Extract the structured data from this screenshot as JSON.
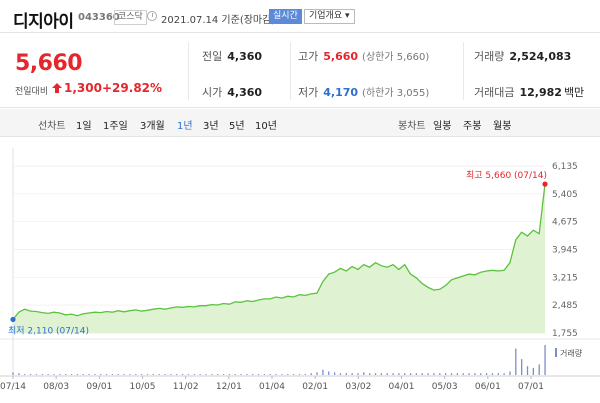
{
  "header": {
    "stock_name": "디지아이",
    "stock_code": "043360",
    "market": "코스닥",
    "date_text": "2021.07.14 기준(장마감)",
    "realtime_label": "실시간",
    "company_info_label": "기업개요 ▾"
  },
  "summary": {
    "price": "5,660",
    "change_label": "전일대비",
    "change_abs": "1,300",
    "change_pct": "+29.82%",
    "prev_close": {
      "label": "전일",
      "value": "4,360"
    },
    "open": {
      "label": "시가",
      "value": "4,360"
    },
    "high": {
      "label": "고가",
      "value": "5,660",
      "sub": "(상한가 5,660)"
    },
    "low": {
      "label": "저가",
      "value": "4,170",
      "sub": "(하한가 3,055)"
    },
    "volume": {
      "label": "거래량",
      "value": "2,524,083"
    },
    "turnover": {
      "label": "거래대금",
      "value": "12,982",
      "unit": "백만"
    },
    "colors": {
      "up": "#e5262c",
      "down": "#2e6fd2"
    }
  },
  "periods": {
    "line_label": "선차트",
    "line_items": [
      "1일",
      "1주일",
      "3개월",
      "1년",
      "3년",
      "5년",
      "10년"
    ],
    "selected": "1년",
    "candle_label": "봉차트",
    "candle_items": [
      "일봉",
      "주봉",
      "월봉"
    ]
  },
  "chart_data": {
    "type": "area",
    "x_ticks": [
      "07/14",
      "08/03",
      "09/01",
      "10/05",
      "11/02",
      "12/01",
      "01/04",
      "02/01",
      "03/02",
      "04/01",
      "05/03",
      "06/01",
      "07/01"
    ],
    "y_ticks": [
      "6,135",
      "5,405",
      "4,675",
      "3,945",
      "3,215",
      "2,485",
      "1,755"
    ],
    "ylim": [
      1755,
      6135
    ],
    "high_annotation": "최고 5,660 (07/14)",
    "low_annotation": "최저 2,110 (07/14)",
    "volume_label": "거래량",
    "line_color": "#5cc23e",
    "fill_color": "#dff3d3",
    "series": [
      {
        "values": [
          2110,
          2300,
          2380,
          2330,
          2320,
          2290,
          2270,
          2300,
          2280,
          2230,
          2250,
          2210,
          2260,
          2280,
          2300,
          2290,
          2320,
          2300,
          2340,
          2310,
          2340,
          2360,
          2330,
          2350,
          2380,
          2400,
          2380,
          2410,
          2440,
          2430,
          2450,
          2440,
          2470,
          2470,
          2500,
          2490,
          2530,
          2510,
          2570,
          2560,
          2600,
          2580,
          2620,
          2650,
          2650,
          2700,
          2670,
          2720,
          2700,
          2760,
          2740,
          2780,
          2800,
          3100,
          3300,
          3350,
          3450,
          3380,
          3500,
          3420,
          3550,
          3480,
          3600,
          3520,
          3480,
          3550,
          3420,
          3550,
          3300,
          3200,
          3050,
          2950,
          2880,
          2900,
          3000,
          3150,
          3200,
          3250,
          3300,
          3280,
          3350,
          3380,
          3400,
          3380,
          3400,
          3600,
          4200,
          4400,
          4300,
          4450,
          4360,
          5660
        ]
      }
    ],
    "volume": [
      3,
      2,
      1,
      1,
      1,
      1,
      1,
      1,
      1,
      1,
      1,
      1,
      1,
      1,
      1,
      1,
      1,
      1,
      1,
      1,
      1,
      1,
      1,
      1,
      1,
      1,
      1,
      1,
      1,
      1,
      1,
      1,
      1,
      1,
      1,
      1,
      1,
      1,
      1,
      1,
      1,
      1,
      1,
      1,
      1,
      1,
      1,
      1,
      1,
      1,
      1,
      2,
      3,
      6,
      4,
      3,
      2,
      2,
      2,
      2,
      3,
      2,
      2,
      2,
      2,
      2,
      2,
      2,
      2,
      2,
      2,
      2,
      2,
      2,
      2,
      2,
      2,
      2,
      2,
      2,
      2,
      2,
      2,
      2,
      2,
      4,
      30,
      18,
      10,
      8,
      12,
      34
    ]
  }
}
